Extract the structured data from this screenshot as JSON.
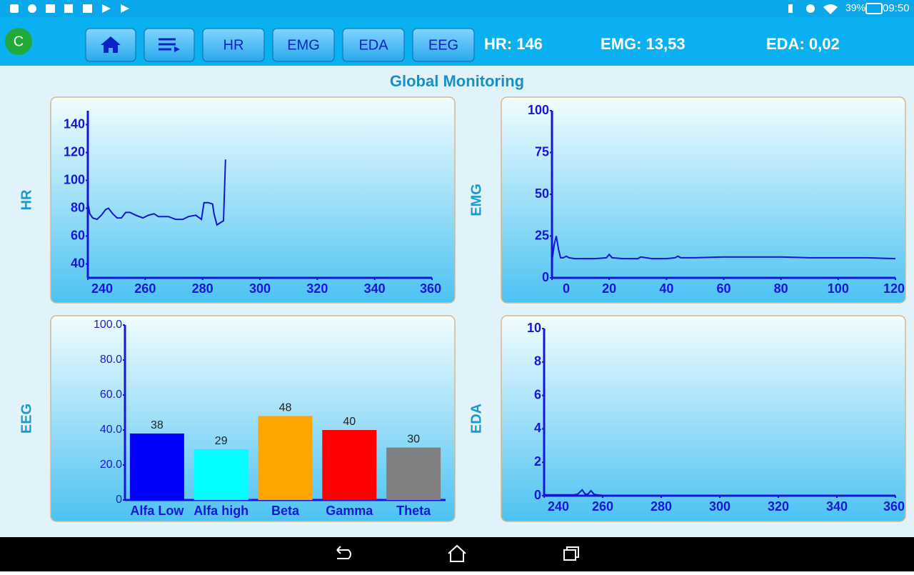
{
  "status_bar": {
    "battery": "39%",
    "time": "09:50"
  },
  "toolbar": {
    "avatar": "C",
    "buttons": [
      "HR",
      "EMG",
      "EDA",
      "EEG"
    ],
    "readouts": [
      "HR: 146",
      "EMG: 13,53",
      "EDA: 0,02"
    ]
  },
  "title": "Global Monitoring",
  "chart_data": [
    {
      "type": "line",
      "y_label": "HR",
      "color": "#1414d2",
      "x": [
        240,
        240.7,
        241.7,
        243.2,
        244.7,
        246.2,
        247.2,
        248.7,
        250.2,
        251.7,
        253.2,
        254.7,
        256.7,
        259.2,
        261.1,
        263.1,
        264.6,
        268.1,
        270.6,
        273.1,
        275.1,
        277.6,
        279.6,
        280.5,
        282,
        283.5,
        284,
        285,
        286.5,
        287.3,
        288
      ],
      "values": [
        84,
        76,
        73,
        72,
        75,
        79,
        80,
        76,
        73,
        73,
        77,
        77,
        75,
        73,
        75,
        76,
        74,
        74,
        72,
        72,
        74,
        75,
        72,
        84,
        84,
        83,
        76,
        68,
        70,
        71,
        115
      ],
      "xlim": [
        240,
        360
      ],
      "xticks": [
        240,
        260,
        280,
        300,
        320,
        340,
        360
      ],
      "ylim": [
        30,
        150
      ],
      "yticks": [
        40,
        60,
        80,
        100,
        120,
        140
      ]
    },
    {
      "type": "line",
      "y_label": "EMG",
      "color": "#1414d2",
      "x": [
        0,
        0.8,
        1.5,
        2.3,
        3,
        4,
        5,
        6,
        8,
        10,
        15,
        19,
        20,
        21,
        25,
        30,
        31,
        35,
        40,
        43,
        44,
        45,
        50,
        60,
        70,
        80,
        90,
        100,
        110,
        120
      ],
      "values": [
        10,
        20,
        25,
        17,
        12,
        12,
        13,
        12,
        11.5,
        11.5,
        11.5,
        12,
        14,
        12,
        11.5,
        11.5,
        12.5,
        11.5,
        11.5,
        12,
        13,
        12,
        12,
        12.5,
        12.5,
        12.5,
        12,
        12,
        12,
        11.5
      ],
      "xlim": [
        0,
        120
      ],
      "xticks": [
        0,
        20,
        40,
        60,
        80,
        100,
        120
      ],
      "ylim": [
        0,
        100
      ],
      "yticks": [
        0,
        25,
        50,
        75,
        100
      ]
    },
    {
      "type": "bar",
      "y_label": "EEG",
      "categories": [
        "Alfa Low",
        "Alfa high",
        "Beta",
        "Gamma",
        "Theta"
      ],
      "values": [
        38,
        29,
        48,
        40,
        30
      ],
      "colors": [
        "#0000ff",
        "#00ffff",
        "#ffa500",
        "#ff0000",
        "#808080"
      ],
      "ylim": [
        0,
        100
      ],
      "yticks": [
        0,
        {
          "value": 20,
          "label": "20.0"
        },
        {
          "value": 40,
          "label": "40.0"
        },
        {
          "value": 60,
          "label": "60.0"
        },
        {
          "value": 80,
          "label": "80.0"
        },
        {
          "value": 100,
          "label": "100.0"
        }
      ]
    },
    {
      "type": "line",
      "y_label": "EDA",
      "color": "#1414d2",
      "x": [
        240,
        245,
        250,
        251.5,
        253,
        254,
        255,
        256,
        257,
        258,
        260
      ],
      "values": [
        0.05,
        0.05,
        0.05,
        0.1,
        0.35,
        0.1,
        0.1,
        0.3,
        0.1,
        0.05,
        0.02
      ],
      "xlim": [
        240,
        360
      ],
      "xticks": [
        240,
        260,
        280,
        300,
        320,
        340,
        360
      ],
      "ylim": [
        0,
        10
      ],
      "yticks": [
        0,
        2,
        4,
        6,
        8,
        10
      ]
    }
  ]
}
